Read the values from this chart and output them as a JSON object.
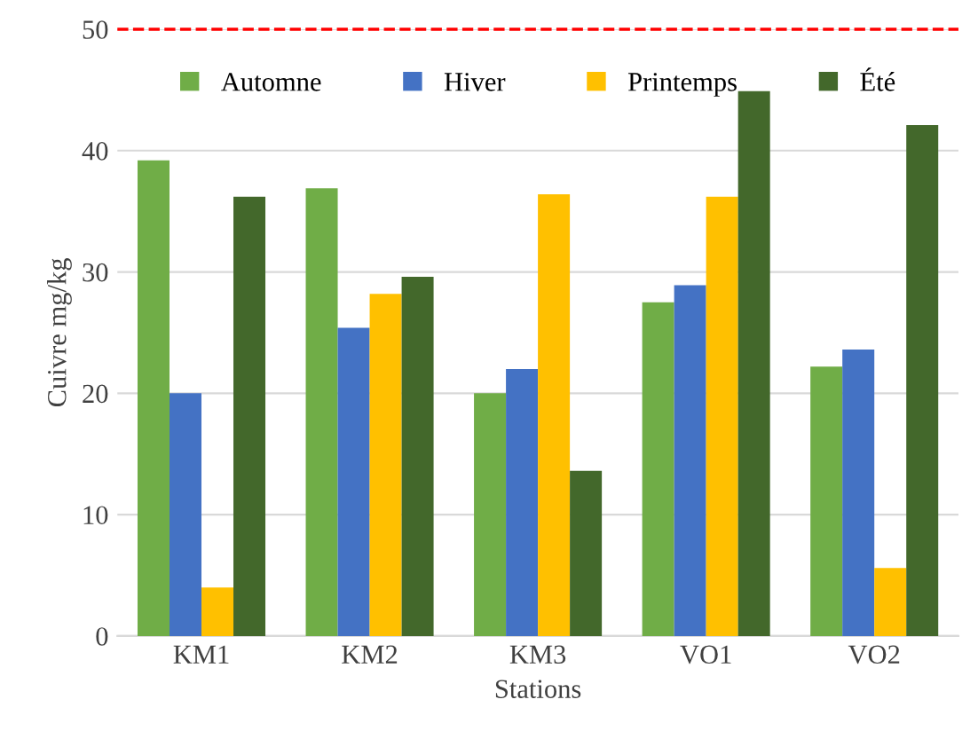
{
  "chart_data": {
    "type": "bar",
    "xlabel": "Stations",
    "ylabel": "Cuivre mg/kg",
    "categories": [
      "KM1",
      "KM2",
      "KM3",
      "VO1",
      "VO2"
    ],
    "series": [
      {
        "name": "Automne",
        "color": "#70ad47",
        "values": [
          39.2,
          36.9,
          20.0,
          27.5,
          22.2
        ]
      },
      {
        "name": "Hiver",
        "color": "#4472c4",
        "values": [
          20.0,
          25.4,
          22.0,
          28.9,
          23.6
        ]
      },
      {
        "name": "Printemps",
        "color": "#ffc000",
        "values": [
          4.0,
          28.2,
          36.4,
          36.2,
          5.6
        ]
      },
      {
        "name": "Été",
        "color": "#43682b",
        "values": [
          36.2,
          29.6,
          13.6,
          44.9,
          42.1
        ]
      }
    ],
    "ylim": [
      0,
      50
    ],
    "yticks": [
      0,
      10,
      20,
      30,
      40,
      50
    ],
    "grid": "y",
    "legend": "top",
    "ref_lines": [
      {
        "axis": "y",
        "value": 50,
        "color": "#ff0000",
        "line_style": "dashed"
      }
    ]
  }
}
